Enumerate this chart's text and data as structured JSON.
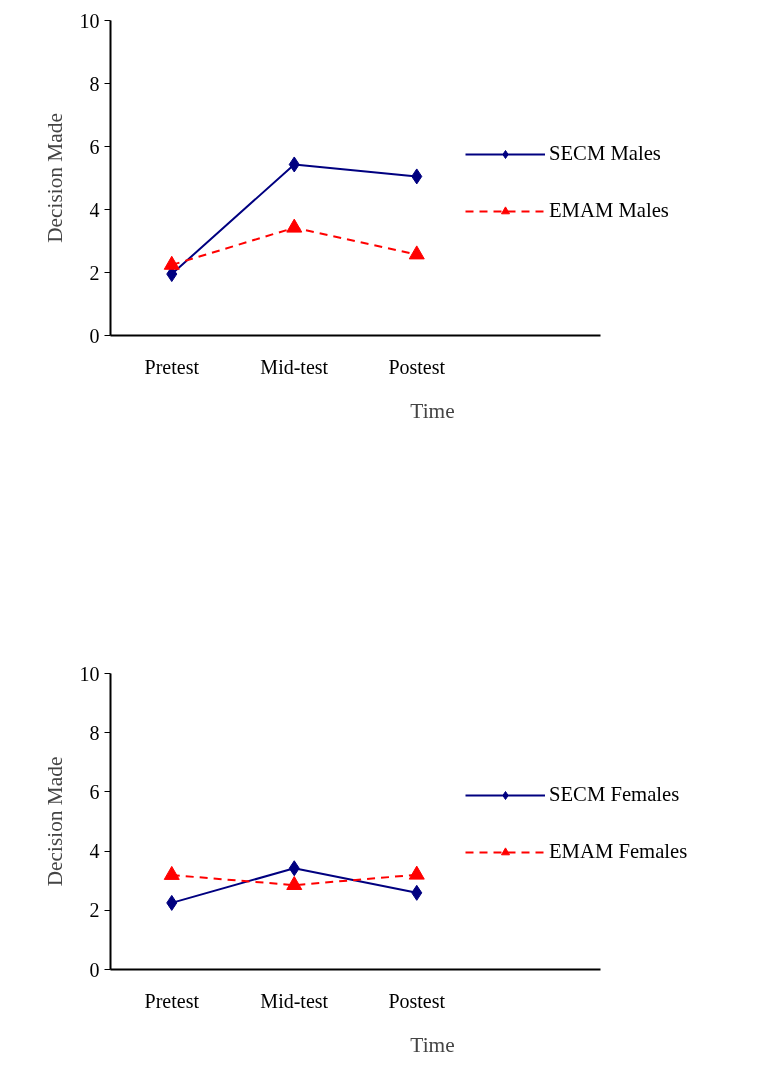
{
  "chart_data": [
    {
      "type": "line",
      "categories": [
        "Pretest",
        "Mid-test",
        "Postest"
      ],
      "xlabel": "Time",
      "ylabel": "Decision Made",
      "ylim": [
        0,
        10
      ],
      "yticks": [
        0,
        2,
        4,
        6,
        8,
        10
      ],
      "grid": false,
      "legend": "right",
      "series": [
        {
          "name": "SECM Males",
          "color": "#000080",
          "marker": "diamond",
          "line_style": "solid",
          "values": [
            1.95,
            5.43,
            5.05
          ]
        },
        {
          "name": "EMAM Males",
          "color": "#ff0000",
          "marker": "triangle",
          "line_style": "dashed",
          "values": [
            2.24,
            3.42,
            2.57
          ]
        }
      ]
    },
    {
      "type": "line",
      "categories": [
        "Pretest",
        "Mid-test",
        "Postest"
      ],
      "xlabel": "Time",
      "ylabel": "Decision Made",
      "ylim": [
        0,
        10
      ],
      "yticks": [
        0,
        2,
        4,
        6,
        8,
        10
      ],
      "grid": false,
      "legend": "right",
      "series": [
        {
          "name": "SECM Females",
          "color": "#000080",
          "marker": "diamond",
          "line_style": "solid",
          "values": [
            2.25,
            3.42,
            2.59
          ]
        },
        {
          "name": "EMAM Females",
          "color": "#ff0000",
          "marker": "triangle",
          "line_style": "dashed",
          "values": [
            3.19,
            2.85,
            3.2
          ]
        }
      ]
    }
  ]
}
